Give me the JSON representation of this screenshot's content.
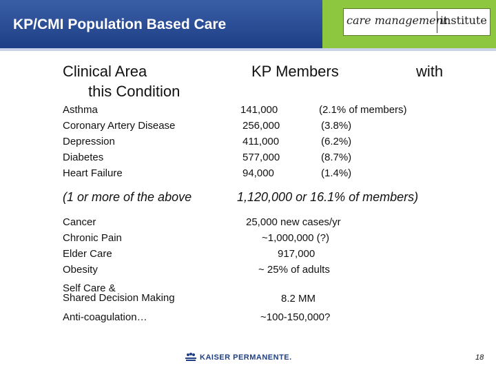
{
  "header": {
    "title": "KP/CMI Population Based Care",
    "logo_left": "care management",
    "logo_right": "institute"
  },
  "columns": {
    "clinical_area": "Clinical Area",
    "this_condition": "this Condition",
    "kp_members": "KP Members",
    "with": "with"
  },
  "conditions": [
    {
      "name": "Asthma",
      "members": "141,000",
      "pct": "(2.1% of members)"
    },
    {
      "name": "Coronary Artery Disease",
      "members": "256,000",
      "pct": "(3.8%)"
    },
    {
      "name": "Depression",
      "members": "411,000",
      "pct": "(6.2%)"
    },
    {
      "name": "Diabetes",
      "members": "577,000",
      "pct": "(8.7%)"
    },
    {
      "name": "Heart Failure",
      "members": "94,000",
      "pct": "(1.4%)"
    }
  ],
  "summary": {
    "left": "(1 or more of the above",
    "right": "1,120,000 or 16.1% of members)"
  },
  "other_areas": [
    {
      "name": "Cancer",
      "value": "25,000 new cases/yr"
    },
    {
      "name": "Chronic Pain",
      "value": "~1,000,000 (?)"
    },
    {
      "name": "Elder Care",
      "value": "917,000"
    },
    {
      "name": "Obesity",
      "value": "~ 25% of adults"
    }
  ],
  "self_care": {
    "line1": "Self Care &",
    "line2": "Shared Decision Making",
    "value": "8.2 MM"
  },
  "anticoag": {
    "name": "Anti-coagulation…",
    "value": "~100-150,000?"
  },
  "footer": {
    "logo_text": "KAISER PERMANENTE.",
    "page": "18"
  }
}
